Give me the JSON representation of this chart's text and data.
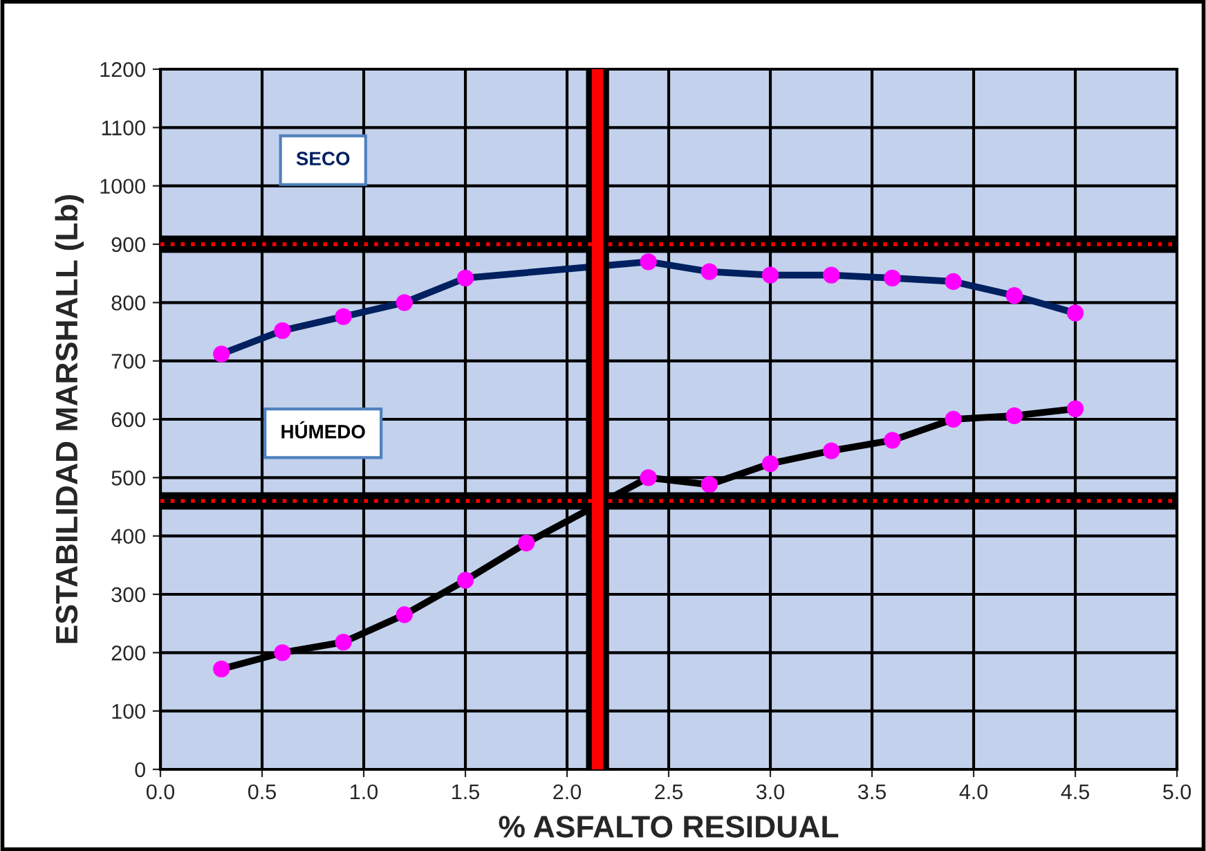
{
  "chart_data": {
    "type": "line",
    "xlabel": "% ASFALTO RESIDUAL",
    "ylabel": "ESTABILIDAD MARSHALL (Lb)",
    "series": [
      {
        "name": "SECO",
        "color": "#002060",
        "x": [
          0.3,
          0.6,
          0.9,
          1.2,
          1.5,
          2.4,
          2.7,
          3.0,
          3.3,
          3.6,
          3.9,
          4.2,
          4.5
        ],
        "values": [
          712,
          752,
          776,
          800,
          842,
          870,
          853,
          847,
          847,
          842,
          836,
          812,
          782
        ]
      },
      {
        "name": "HÚMEDO",
        "color": "#000000",
        "x": [
          0.3,
          0.6,
          0.9,
          1.2,
          1.5,
          1.8,
          2.4,
          2.7,
          3.0,
          3.3,
          3.6,
          3.9,
          4.2,
          4.5
        ],
        "values": [
          172,
          200,
          218,
          265,
          324,
          388,
          500,
          488,
          524,
          546,
          564,
          600,
          606,
          618
        ]
      }
    ],
    "xlim": [
      0,
      5
    ],
    "xticks": [
      {
        "value": 0,
        "label": "0.0"
      },
      {
        "value": 0.5,
        "label": "0.5"
      },
      {
        "value": 1,
        "label": "1.0"
      },
      {
        "value": 1.5,
        "label": "1.5"
      },
      {
        "value": 2,
        "label": "2.0"
      },
      {
        "value": 2.5,
        "label": "2.5"
      },
      {
        "value": 3,
        "label": "3.0"
      },
      {
        "value": 3.5,
        "label": "3.5"
      },
      {
        "value": 4,
        "label": "4.0"
      },
      {
        "value": 4.5,
        "label": "4.5"
      },
      {
        "value": 5,
        "label": "5.0"
      }
    ],
    "ylim": [
      0,
      1200
    ],
    "yticks": [
      0,
      100,
      200,
      300,
      400,
      500,
      600,
      700,
      800,
      900,
      1000,
      1100,
      1200
    ],
    "ref_lines": [
      {
        "axis": "y",
        "value": 900,
        "color": "#000000",
        "line_style": "solid"
      },
      {
        "axis": "y",
        "value": 900,
        "color": "#ff0000",
        "line_style": "dotted"
      },
      {
        "axis": "y",
        "value": 460,
        "color": "#000000",
        "line_style": "solid"
      },
      {
        "axis": "y",
        "value": 460,
        "color": "#ff0000",
        "line_style": "dotted"
      },
      {
        "axis": "x",
        "value": 2.15,
        "color": "#000000",
        "line_style": "solid"
      },
      {
        "axis": "x",
        "value": 2.15,
        "color": "#ff0000",
        "line_style": "solid"
      }
    ],
    "grid": true,
    "marker": "circle"
  }
}
